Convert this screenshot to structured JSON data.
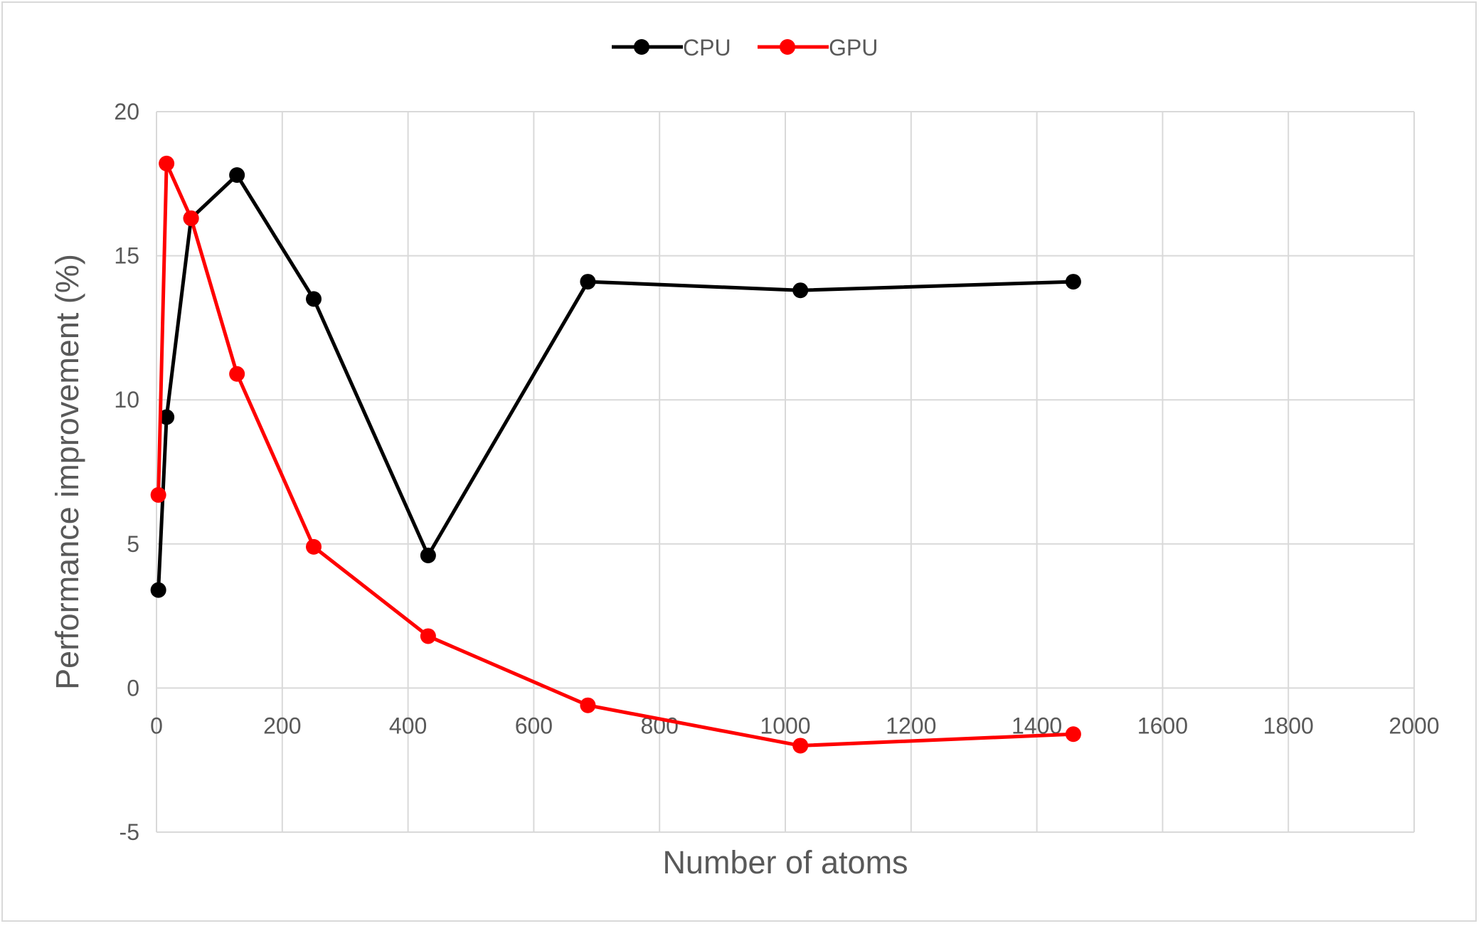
{
  "chart_data": {
    "type": "line",
    "title": "",
    "xlabel": "Number of atoms",
    "ylabel": "Performance improvement (%)",
    "xlim": [
      0,
      2000
    ],
    "ylim": [
      -5,
      20
    ],
    "x_ticks": [
      "0",
      "200",
      "400",
      "600",
      "800",
      "1000",
      "1200",
      "1400",
      "1600",
      "1800",
      "2000"
    ],
    "y_ticks": [
      "-5",
      "0",
      "5",
      "10",
      "15",
      "20"
    ],
    "grid": true,
    "legend_position": "top-center",
    "series": [
      {
        "name": "CPU",
        "color": "#000000",
        "x": [
          3,
          16,
          55,
          128,
          250,
          432,
          686,
          1024,
          1458
        ],
        "y": [
          3.4,
          9.4,
          16.3,
          17.8,
          13.5,
          4.6,
          14.1,
          13.8,
          14.1
        ]
      },
      {
        "name": "GPU",
        "color": "#ff0000",
        "x": [
          3,
          16,
          55,
          128,
          250,
          432,
          686,
          1024,
          1458
        ],
        "y": [
          6.7,
          18.2,
          16.3,
          10.9,
          4.9,
          1.8,
          -0.6,
          -2.0,
          -1.6
        ]
      }
    ]
  }
}
